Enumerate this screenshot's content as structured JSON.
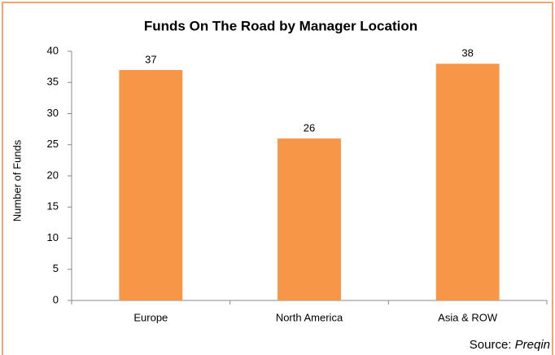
{
  "chart_data": {
    "type": "bar",
    "title": "Funds On The Road by Manager Location",
    "y_label": "Number of Funds",
    "categories": [
      "Europe",
      "North America",
      "Asia & ROW"
    ],
    "values": [
      37,
      26,
      38
    ],
    "color": "#f79646",
    "ylim": [
      0,
      40
    ],
    "yticks": [
      0,
      5,
      10,
      15,
      20,
      25,
      30,
      35,
      40
    ],
    "grid": false,
    "source": {
      "label": "Source:",
      "name": "Preqin"
    }
  }
}
